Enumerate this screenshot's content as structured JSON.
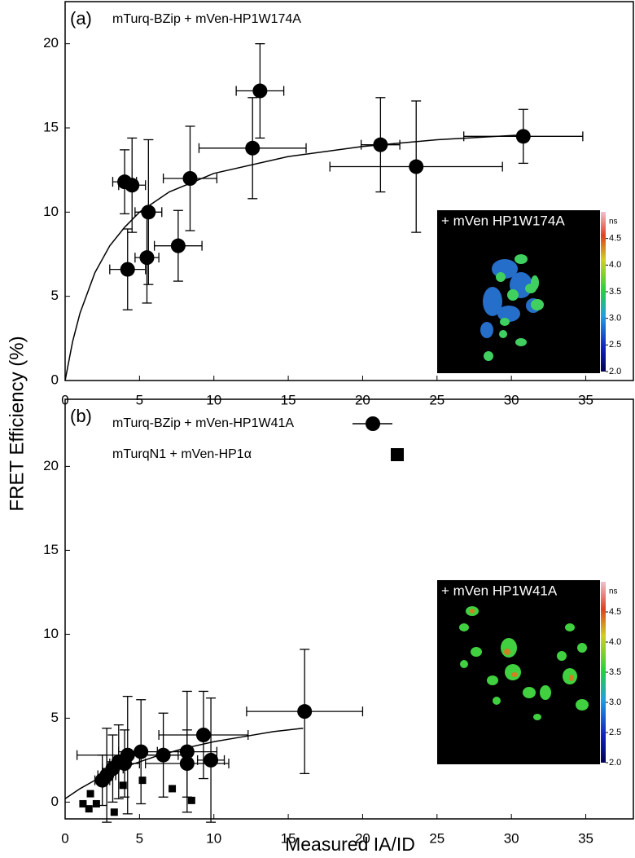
{
  "y_axis_label": "FRET Efficiency (%)",
  "x_axis_label": "Measured IA/ID",
  "chart_data": [
    {
      "type": "scatter",
      "title": "(a)",
      "xlim": [
        0,
        38.2
      ],
      "ylim": [
        0,
        22.5
      ],
      "xticks": [
        0,
        5,
        10,
        15,
        20,
        25,
        30,
        35
      ],
      "yticks": [
        0,
        5,
        10,
        15,
        20
      ],
      "series": [
        {
          "name": "mTurq-BZip + mVen-HP1W174A",
          "marker": "circle",
          "color": "#000000",
          "x": [
            4.0,
            4.5,
            4.2,
            5.6,
            5.5,
            7.6,
            8.4,
            12.6,
            13.1,
            21.2,
            23.6,
            30.8
          ],
          "values": [
            11.8,
            11.6,
            6.6,
            10.0,
            7.3,
            8.0,
            12.0,
            13.8,
            17.2,
            14.0,
            12.7,
            14.5
          ],
          "xerr": [
            0.8,
            0.9,
            1.2,
            0.9,
            0.8,
            1.6,
            1.8,
            3.6,
            1.6,
            1.3,
            5.8,
            4.0
          ],
          "yerr": [
            1.9,
            2.8,
            2.4,
            4.3,
            2.7,
            2.1,
            3.1,
            3.0,
            2.8,
            2.8,
            3.9,
            1.6
          ]
        }
      ],
      "fit": {
        "x": [
          0,
          0.5,
          1,
          2,
          3,
          4,
          5,
          7,
          10,
          15,
          20,
          25,
          31
        ],
        "values": [
          0,
          2.3,
          4.0,
          6.4,
          8.0,
          9.1,
          10.0,
          11.2,
          12.3,
          13.3,
          13.9,
          14.3,
          14.6
        ]
      },
      "inset": {
        "label": "+ mVen HP1W174A",
        "unit": "ns",
        "lim": [
          2.0,
          5.0
        ],
        "ticks": [
          {
            "value": 4.5,
            "label": "4.5"
          },
          {
            "value": 4,
            "label": "4.0"
          },
          {
            "value": 3.5,
            "label": "3.5"
          },
          {
            "value": 3,
            "label": "3.0"
          },
          {
            "value": 2.5,
            "label": "2.5"
          },
          {
            "value": 2,
            "label": "2.0"
          }
        ]
      }
    },
    {
      "type": "scatter",
      "title": "(b)",
      "xlim": [
        0,
        38.2
      ],
      "ylim": [
        -1,
        24
      ],
      "xticks": [
        0,
        5,
        10,
        15,
        20,
        25,
        30,
        35
      ],
      "yticks": [
        0,
        5,
        10,
        15,
        20
      ],
      "series": [
        {
          "name": "mTurq-BZip + mVen-HP1W41A",
          "marker": "circle",
          "color": "#000000",
          "x": [
            16.1,
            9.3,
            8.2,
            8.2,
            9.8,
            6.6,
            5.1,
            4.2,
            4.0,
            3.6,
            3.2,
            2.8,
            2.5
          ],
          "values": [
            5.4,
            4.0,
            3.0,
            2.3,
            2.5,
            2.8,
            3.0,
            2.8,
            2.3,
            2.4,
            2.0,
            1.6,
            1.3
          ],
          "xerr": [
            3.9,
            3.0,
            2.0,
            2.8,
            0.9,
            1.5,
            1.5,
            3.4,
            1.0,
            0.8,
            0.7,
            0.6,
            0.5
          ],
          "yerr": [
            3.7,
            2.6,
            3.6,
            2.0,
            3.7,
            2.5,
            3.1,
            3.5,
            2.0,
            2.2,
            2.0,
            2.8,
            1.5
          ]
        },
        {
          "name": "mTurqN1 + mVen-HP1α",
          "marker": "square",
          "color": "#000000",
          "x": [
            1.2,
            1.7,
            1.6,
            2.1,
            3.3,
            3.9,
            5.2,
            7.2,
            8.5
          ],
          "values": [
            -0.1,
            0.5,
            -0.4,
            -0.1,
            -0.6,
            1.0,
            1.3,
            0.8,
            0.1
          ]
        }
      ],
      "fit": {
        "x": [
          0,
          1,
          2,
          4,
          6,
          8,
          10,
          12,
          14,
          16
        ],
        "values": [
          0.2,
          0.8,
          1.3,
          2.1,
          2.7,
          3.2,
          3.6,
          3.9,
          4.2,
          4.4
        ]
      },
      "inset": {
        "label": "+ mVen HP1W41A",
        "unit": "ns",
        "lim": [
          2.0,
          5.0
        ],
        "ticks": [
          {
            "value": 4.5,
            "label": "4.5"
          },
          {
            "value": 4,
            "label": "4.0"
          },
          {
            "value": 3.5,
            "label": "3.5"
          },
          {
            "value": 3,
            "label": "3.0"
          },
          {
            "value": 2.5,
            "label": "2.5"
          },
          {
            "value": 2,
            "label": "2.0"
          }
        ]
      }
    }
  ]
}
